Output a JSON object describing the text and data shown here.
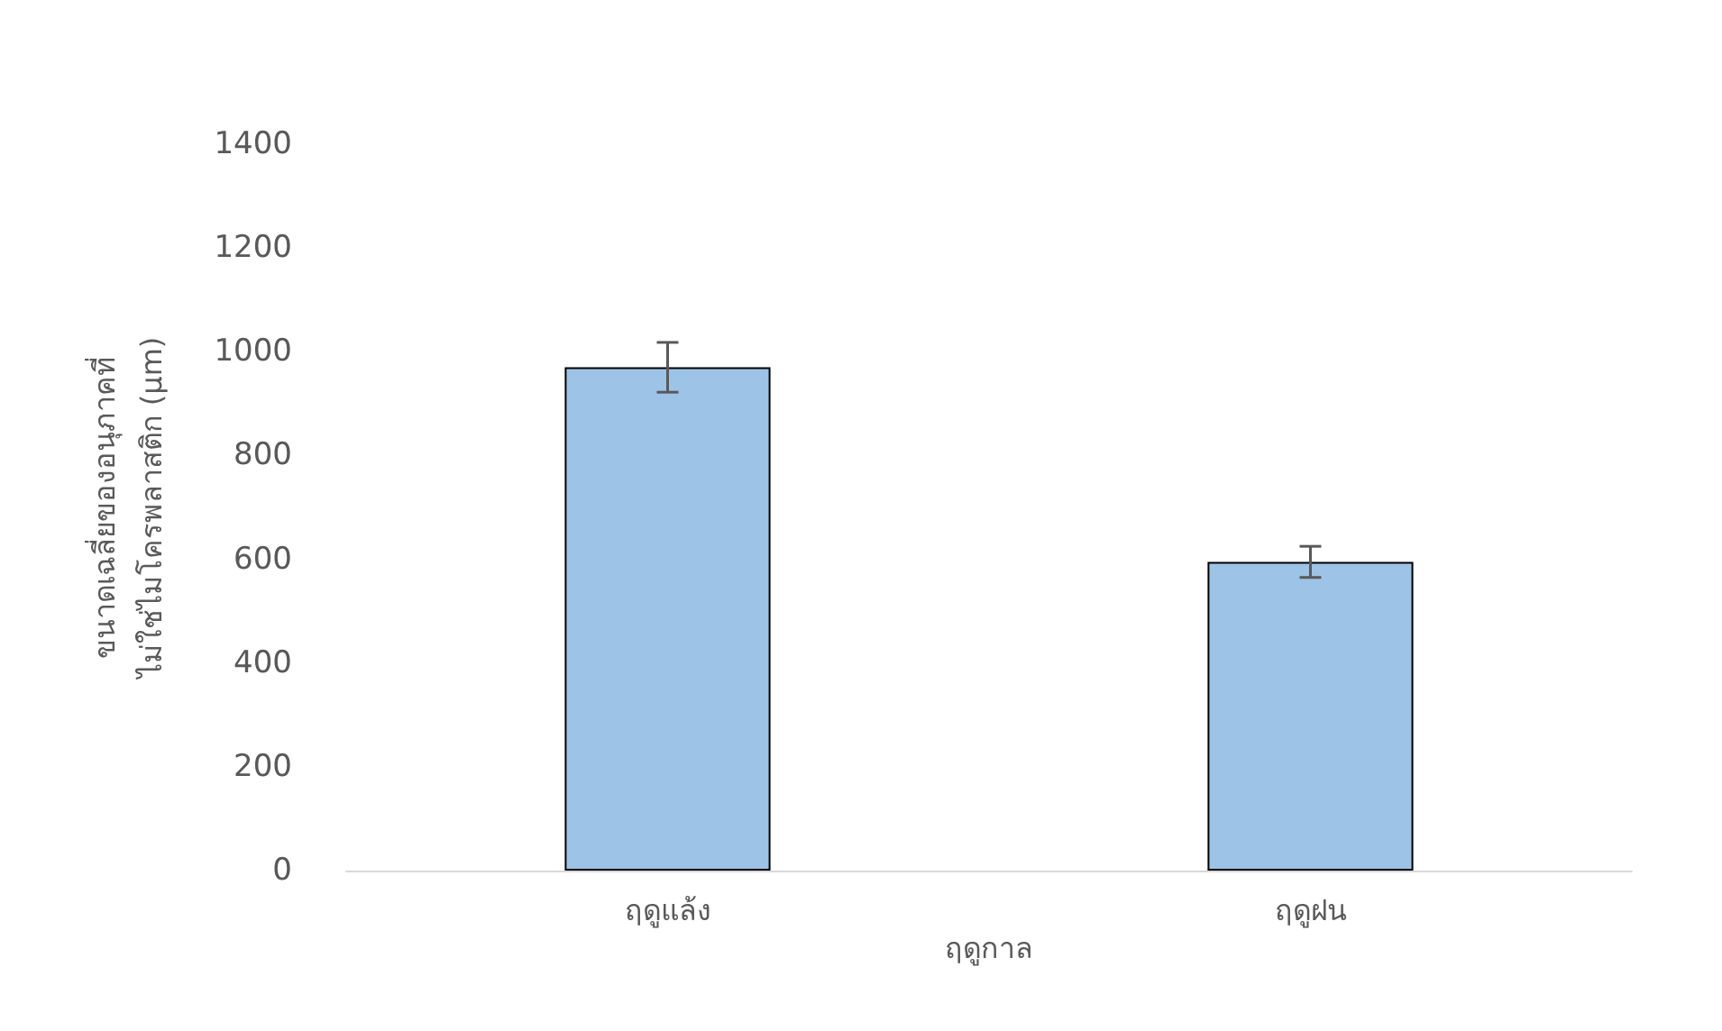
{
  "chart_data": {
    "type": "bar",
    "xlabel": "ฤดูกาล",
    "ylabel": "ขนาดเฉลี่ยของอนุภาคที่\nไม่ใช่ไมโครพลาสติก (µm)",
    "categories": [
      "ฤดูแล้ง",
      "ฤดูฝน"
    ],
    "values": [
      970,
      595
    ],
    "errors": [
      48,
      30
    ],
    "color": "#9dc3e6",
    "ylim": [
      0,
      1400
    ],
    "yticks": [
      0,
      200,
      400,
      600,
      800,
      1000,
      1200,
      1400
    ],
    "grid": false
  }
}
